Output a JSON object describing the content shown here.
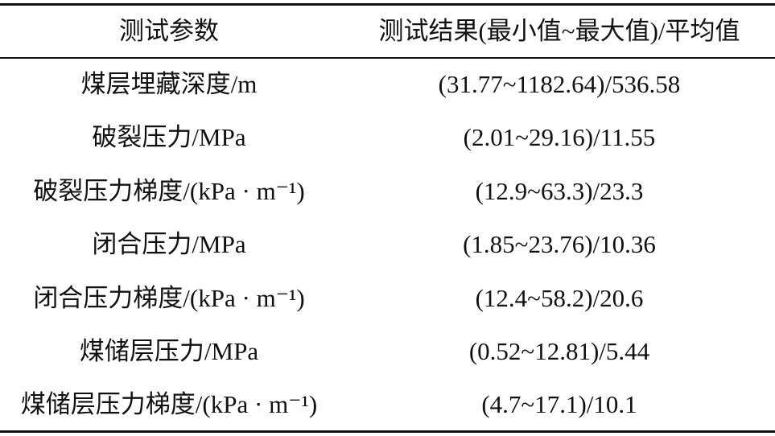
{
  "table": {
    "header": [
      "测试参数",
      "测试结果(最小值~最大值)/平均值"
    ],
    "rows": [
      [
        "煤层埋藏深度/m",
        "(31.77~1182.64)/536.58"
      ],
      [
        "破裂压力/MPa",
        "(2.01~29.16)/11.55"
      ],
      [
        "破裂压力梯度/(kPa · m⁻¹)",
        "(12.9~63.3)/23.3"
      ],
      [
        "闭合压力/MPa",
        "(1.85~23.76)/10.36"
      ],
      [
        "闭合压力梯度/(kPa · m⁻¹)",
        "(12.4~58.2)/20.6"
      ],
      [
        "煤储层压力/MPa",
        "(0.52~12.81)/5.44"
      ],
      [
        "煤储层压力梯度/(kPa · m⁻¹)",
        "(4.7~17.1)/10.1"
      ]
    ]
  }
}
